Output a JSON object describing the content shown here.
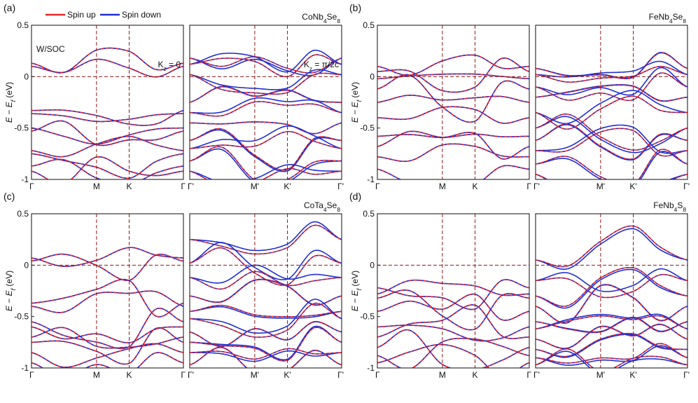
{
  "legend": {
    "spin_up": "Spin up",
    "spin_down": "Spin down",
    "spin_up_color": "#e8262a",
    "spin_down_color": "#1f2fd1"
  },
  "axis": {
    "ylabel_main": "E − E",
    "ylabel_sub": "f",
    "ylabel_unit": " (eV)",
    "yticks": [
      "0.5",
      "0",
      "-0.5",
      "-1"
    ],
    "ytick_values": [
      0.5,
      0,
      -0.5,
      -1
    ],
    "ylim": [
      -1,
      0.5
    ]
  },
  "annotations": {
    "soc": "W/SOC",
    "kz0_main": "K",
    "kz0_sub": "z",
    "kz0_rest": " = 0",
    "kzpi_main": "K",
    "kzpi_sub": "z",
    "kzpi_rest": " = π/2c"
  },
  "chart_data": [
    {
      "type": "line",
      "panel": "(a)",
      "material": {
        "parts": [
          [
            "CoNb",
            ""
          ],
          [
            "4",
            "sub"
          ],
          [
            "Se",
            ""
          ],
          [
            "8",
            "sub"
          ]
        ]
      },
      "left_kpath": [
        "Γ",
        "M",
        "K",
        "Γ"
      ],
      "right_kpath": [
        "Γ'",
        "M'",
        "K'",
        "Γ'"
      ],
      "kpath_positions": [
        0,
        0.428,
        0.643,
        1
      ],
      "fermi_level": 0,
      "ylim": [
        -1,
        0.5
      ],
      "left_bands_eV_at_Gamma": [
        0.13,
        0.1,
        -0.33,
        -0.36,
        -0.5,
        -0.53,
        -0.72,
        -0.75,
        -0.87,
        -0.92
      ],
      "right_bands_eV_at_Gamma": [
        0.18,
        0.12,
        0.02,
        -0.25,
        -0.35,
        -0.45,
        -0.62,
        -0.7,
        -0.82,
        -0.92
      ]
    },
    {
      "type": "line",
      "panel": "(b)",
      "material": {
        "parts": [
          [
            "FeNb",
            ""
          ],
          [
            "4",
            "sub"
          ],
          [
            "Se",
            ""
          ],
          [
            "8",
            "sub"
          ]
        ]
      },
      "left_kpath": [
        "Γ",
        "M",
        "K",
        "Γ"
      ],
      "right_kpath": [
        "Γ'",
        "M'",
        "K'",
        "Γ'"
      ],
      "kpath_positions": [
        0,
        0.428,
        0.643,
        1
      ],
      "fermi_level": 0,
      "ylim": [
        -1,
        0.5
      ],
      "left_bands_eV_at_Gamma": [
        0.1,
        0.05,
        -0.02,
        -0.12,
        -0.25,
        -0.4,
        -0.58,
        -0.68,
        -0.78,
        -0.9
      ],
      "right_bands_eV_at_Gamma": [
        0.08,
        0.02,
        -0.1,
        -0.2,
        -0.35,
        -0.5,
        -0.62,
        -0.72,
        -0.85,
        -0.95
      ]
    },
    {
      "type": "line",
      "panel": "(c)",
      "material": {
        "parts": [
          [
            "CoTa",
            ""
          ],
          [
            "4",
            "sub"
          ],
          [
            "Se",
            ""
          ],
          [
            "8",
            "sub"
          ]
        ]
      },
      "left_kpath": [
        "Γ",
        "M",
        "K",
        "Γ"
      ],
      "right_kpath": [
        "Γ'",
        "M'",
        "K'",
        "Γ'"
      ],
      "kpath_positions": [
        0,
        0.428,
        0.643,
        1
      ],
      "fermi_level": 0,
      "ylim": [
        -1,
        0.5
      ],
      "left_bands_eV_at_Gamma": [
        0.07,
        0.04,
        -0.37,
        -0.4,
        -0.55,
        -0.6,
        -0.7,
        -0.75,
        -0.85,
        -0.95
      ],
      "right_bands_eV_at_Gamma": [
        0.25,
        0.02,
        -0.12,
        -0.3,
        -0.45,
        -0.52,
        -0.65,
        -0.75,
        -0.85,
        -0.97
      ]
    },
    {
      "type": "line",
      "panel": "(d)",
      "material": {
        "parts": [
          [
            "FeNb",
            ""
          ],
          [
            "4",
            "sub"
          ],
          [
            "S",
            ""
          ],
          [
            "8",
            "sub"
          ]
        ]
      },
      "left_kpath": [
        "Γ",
        "M",
        "K",
        "Γ"
      ],
      "right_kpath": [
        "Γ'",
        "M'",
        "K'",
        "Γ'"
      ],
      "kpath_positions": [
        0,
        0.428,
        0.643,
        1
      ],
      "fermi_level": 0,
      "ylim": [
        -1,
        0.5
      ],
      "left_bands_eV_at_Gamma": [
        -0.22,
        -0.28,
        -0.32,
        -0.45,
        -0.6,
        -0.7,
        -0.8,
        -0.88,
        -0.95
      ],
      "right_bands_eV_at_Gamma": [
        0.05,
        -0.15,
        -0.3,
        -0.4,
        -0.55,
        -0.62,
        -0.72,
        -0.82,
        -0.9,
        -0.97
      ]
    }
  ]
}
